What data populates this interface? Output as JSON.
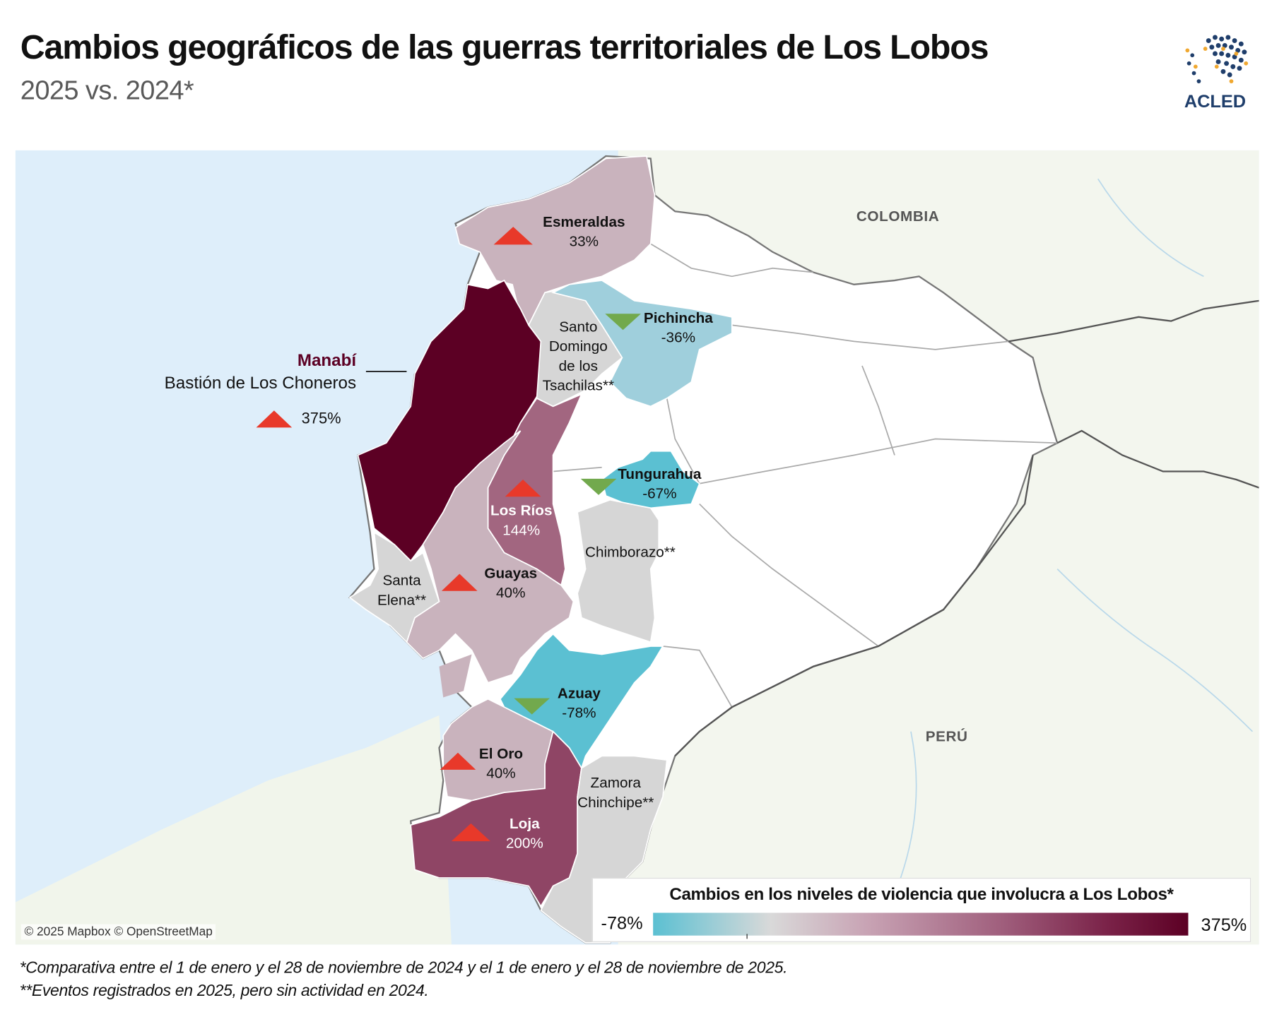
{
  "header": {
    "title": "Cambios geográficos de las guerras territoriales de Los Lobos",
    "subtitle": "2025 vs. 2024*",
    "logo_text": "ACLED"
  },
  "map": {
    "countries": [
      "COLOMBIA",
      "PERÚ"
    ],
    "attribution": "© 2025 Mapbox © OpenStreetMap",
    "manabi": {
      "name": "Manabí",
      "note": "Bastión de Los Choneros",
      "value": "375%",
      "trend": "up"
    },
    "provinces": [
      {
        "name": "Esmeraldas",
        "value": "33%",
        "trend": "up",
        "color": "#c9b3bd"
      },
      {
        "name": "Pichincha",
        "value": "-36%",
        "trend": "down",
        "color": "#9fcfdc"
      },
      {
        "name": "Santo Domingo de los Tsachilas**",
        "lines": [
          "Santo",
          "Domingo",
          "de los",
          "Tsachilas**"
        ],
        "color": "#d6d6d6"
      },
      {
        "name": "Tungurahua",
        "value": "-67%",
        "trend": "down",
        "color": "#5bc0d2"
      },
      {
        "name": "Los Ríos",
        "value": "144%",
        "trend": "up",
        "color": "#a26680"
      },
      {
        "name": "Chimborazo**",
        "color": "#d6d6d6"
      },
      {
        "name": "Guayas",
        "value": "40%",
        "trend": "up",
        "color": "#c9b3bd"
      },
      {
        "name": "Santa Elena**",
        "lines": [
          "Santa",
          "Elena**"
        ],
        "color": "#d6d6d6"
      },
      {
        "name": "Azuay",
        "value": "-78%",
        "trend": "down",
        "color": "#5bc0d2"
      },
      {
        "name": "El Oro",
        "value": "40%",
        "trend": "up",
        "color": "#c9b3bd"
      },
      {
        "name": "Zamora Chinchipe**",
        "lines": [
          "Zamora",
          "Chinchipe**"
        ],
        "color": "#d6d6d6"
      },
      {
        "name": "Loja",
        "value": "200%",
        "trend": "up",
        "color": "#8f4565"
      }
    ],
    "manabi_color": "#5c0024",
    "increase_color": "#e8392a",
    "decrease_color": "#72a94d"
  },
  "legend": {
    "title": "Cambios en los niveles de violencia que involucra a Los Lobos*",
    "min": "-78%",
    "max": "375%",
    "min_color": "#5bc0d2",
    "max_color": "#5c0024"
  },
  "footnotes": [
    "*Comparativa entre el 1 de enero y el 28 de noviembre de 2024 y el 1 de enero y el 28 de noviembre de 2025.",
    "**Eventos registrados en 2025, pero sin actividad en 2024."
  ]
}
